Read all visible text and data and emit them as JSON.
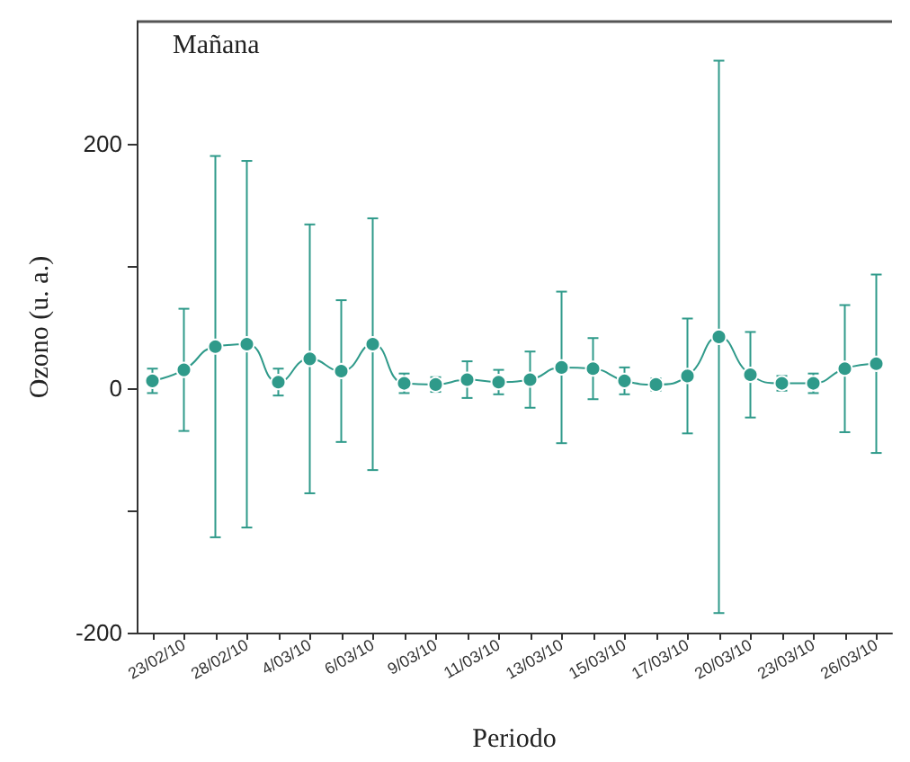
{
  "chart_data": {
    "type": "line",
    "xlabel": "Periodo",
    "ylabel": "Ozono (u. a.)",
    "annotations": [
      "Mañana"
    ],
    "categories": [
      null,
      "23/02/10",
      null,
      "28/02/10",
      null,
      "4/03/10",
      null,
      "6/03/10",
      null,
      "9/03/10",
      null,
      "11/03/10",
      null,
      "13/03/10",
      null,
      "15/03/10",
      null,
      "17/03/10",
      null,
      "20/03/10",
      null,
      "23/03/10",
      null,
      "26/03/10"
    ],
    "series": [
      {
        "color": "#2f9a8a",
        "values": [
          6,
          15,
          34,
          36,
          5,
          24,
          14,
          36,
          4,
          3,
          7,
          5,
          7,
          17,
          16,
          6,
          3,
          10,
          42,
          11,
          4,
          4,
          16,
          20
        ],
        "errors": [
          10,
          50,
          156,
          150,
          11,
          110,
          58,
          103,
          8,
          6,
          15,
          10,
          23,
          62,
          25,
          11,
          5,
          47,
          226,
          35,
          6,
          8,
          52,
          73
        ]
      }
    ],
    "ylim": [
      -200,
      300
    ],
    "yticks": [
      -200,
      {
        "value": -100,
        "label": null
      },
      0,
      {
        "value": 100,
        "label": null
      },
      200
    ],
    "marker": "circle",
    "grid": false
  }
}
